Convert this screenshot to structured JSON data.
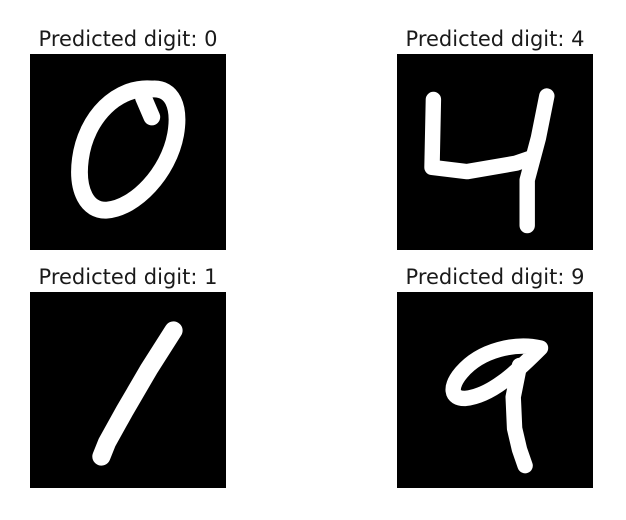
{
  "panels": [
    {
      "title": "Predicted digit: 0",
      "digit": "0",
      "color": "#ffffff"
    },
    {
      "title": "Predicted digit: 4",
      "digit": "4",
      "color": "#ffffff"
    },
    {
      "title": "Predicted digit: 1",
      "digit": "1",
      "color": "#ffffff"
    },
    {
      "title": "Predicted digit: 9",
      "digit": "9",
      "color": "#ffffff"
    }
  ],
  "background_color": "#000000"
}
